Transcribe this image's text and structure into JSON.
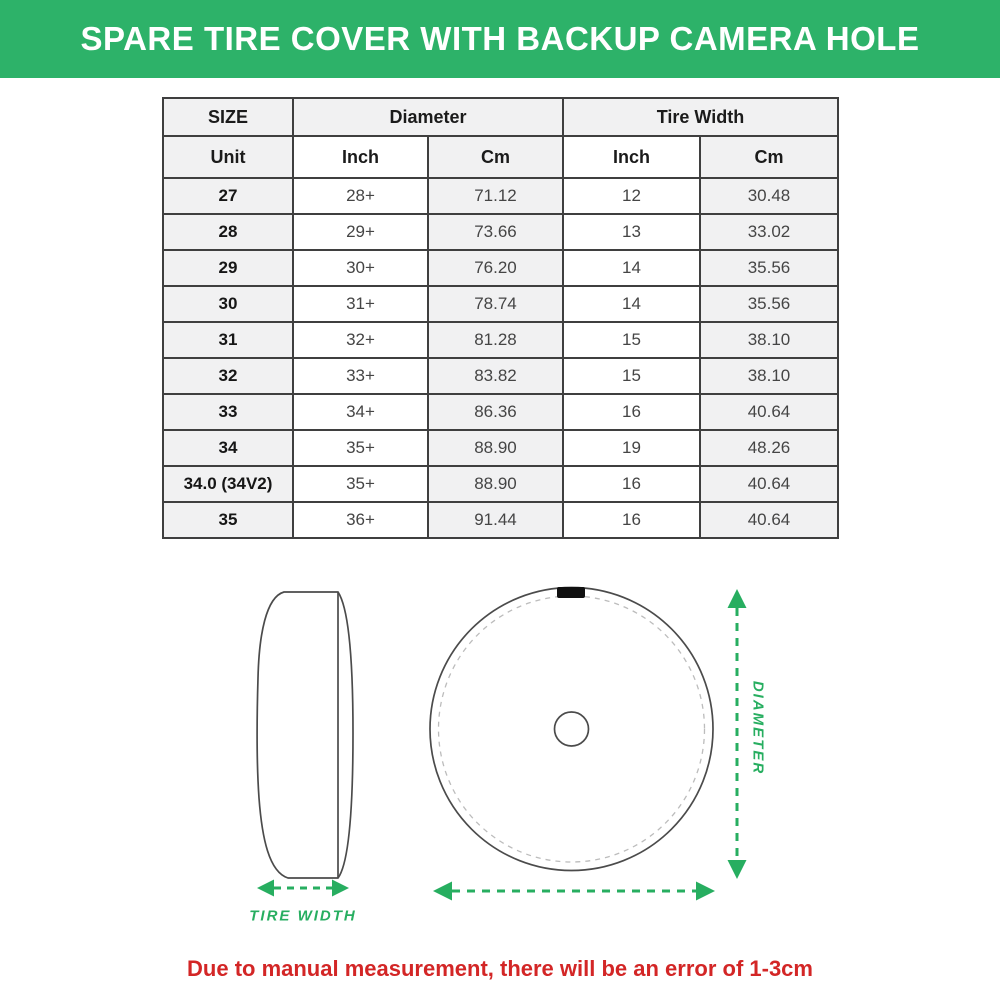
{
  "banner": {
    "title": "SPARE TIRE COVER WITH BACKUP CAMERA HOLE",
    "bg_color": "#2db269",
    "text_color": "#ffffff"
  },
  "table": {
    "header_row1": {
      "size": "SIZE",
      "diameter": "Diameter",
      "tire_width": "Tire Width"
    },
    "header_row2": {
      "unit": "Unit",
      "diameter_inch": "Inch",
      "diameter_cm": "Cm",
      "width_inch": "Inch",
      "width_cm": "Cm"
    },
    "col_keys": [
      "size",
      "diameter-inch",
      "diameter-cm",
      "width-inch",
      "width-cm"
    ],
    "rows": [
      {
        "cells": [
          "27",
          "28+",
          "71.12",
          "12",
          "30.48"
        ]
      },
      {
        "cells": [
          "28",
          "29+",
          "73.66",
          "13",
          "33.02"
        ]
      },
      {
        "cells": [
          "29",
          "30+",
          "76.20",
          "14",
          "35.56"
        ]
      },
      {
        "cells": [
          "30",
          "31+",
          "78.74",
          "14",
          "35.56"
        ]
      },
      {
        "cells": [
          "31",
          "32+",
          "81.28",
          "15",
          "38.10"
        ]
      },
      {
        "cells": [
          "32",
          "33+",
          "83.82",
          "15",
          "38.10"
        ]
      },
      {
        "cells": [
          "33",
          "34+",
          "86.36",
          "16",
          "40.64"
        ]
      },
      {
        "cells": [
          "34",
          "35+",
          "88.90",
          "19",
          "48.26"
        ]
      },
      {
        "cells": [
          "34.0 (34V2)",
          "35+",
          "88.90",
          "16",
          "40.64"
        ]
      },
      {
        "cells": [
          "35",
          "36+",
          "91.44",
          "16",
          "40.64"
        ]
      }
    ]
  },
  "diagram": {
    "tire_width_label": "TIRE WIDTH",
    "diameter_label": "DIAMETER",
    "accent_color": "#27ae60",
    "outline_color": "#4b4b4b"
  },
  "footnote": {
    "text": "Due to manual measurement, there will be an error of 1-3cm",
    "color": "#d32626"
  }
}
